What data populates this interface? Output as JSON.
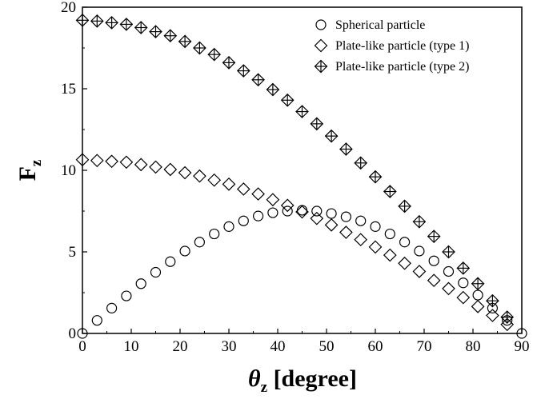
{
  "chart_data": {
    "type": "scatter",
    "x_axis": {
      "label_symbol": "θ",
      "label_subscript": "z",
      "label_unit": " [degree]",
      "range": [
        0,
        90
      ],
      "ticks": [
        0,
        10,
        20,
        30,
        40,
        50,
        60,
        70,
        80,
        90
      ]
    },
    "y_axis": {
      "label_symbol": "F",
      "label_subscript": "z",
      "range": [
        0,
        20
      ],
      "ticks": [
        0,
        5,
        10,
        15,
        20
      ]
    },
    "grid": false,
    "legend_position": "top-right",
    "series": [
      {
        "name": "Spherical particle",
        "marker": "circle",
        "x": [
          0,
          3,
          6,
          9,
          12,
          15,
          18,
          21,
          24,
          27,
          30,
          33,
          36,
          39,
          42,
          45,
          48,
          51,
          54,
          57,
          60,
          63,
          66,
          69,
          72,
          75,
          78,
          81,
          84,
          87,
          90
        ],
        "y": [
          0.0,
          0.8,
          1.55,
          2.3,
          3.05,
          3.75,
          4.4,
          5.05,
          5.6,
          6.1,
          6.55,
          6.9,
          7.2,
          7.4,
          7.5,
          7.55,
          7.5,
          7.35,
          7.15,
          6.9,
          6.55,
          6.1,
          5.6,
          5.05,
          4.45,
          3.8,
          3.1,
          2.35,
          1.55,
          0.8,
          0.0
        ]
      },
      {
        "name": "Plate-like particle (type 1)",
        "marker": "diamond",
        "x": [
          0,
          3,
          6,
          9,
          12,
          15,
          18,
          21,
          24,
          27,
          30,
          33,
          36,
          39,
          42,
          45,
          48,
          51,
          54,
          57,
          60,
          63,
          66,
          69,
          72,
          75,
          78,
          81,
          84,
          87
        ],
        "y": [
          10.65,
          10.6,
          10.55,
          10.5,
          10.35,
          10.2,
          10.05,
          9.85,
          9.65,
          9.4,
          9.15,
          8.85,
          8.55,
          8.2,
          7.85,
          7.45,
          7.05,
          6.65,
          6.2,
          5.75,
          5.3,
          4.8,
          4.3,
          3.8,
          3.25,
          2.75,
          2.2,
          1.65,
          1.1,
          0.55
        ]
      },
      {
        "name": "Plate-like particle (type 2)",
        "marker": "crossed-diamond",
        "x": [
          0,
          3,
          6,
          9,
          12,
          15,
          18,
          21,
          24,
          27,
          30,
          33,
          36,
          39,
          42,
          45,
          48,
          51,
          54,
          57,
          60,
          63,
          66,
          69,
          72,
          75,
          78,
          81,
          84,
          87
        ],
        "y": [
          19.2,
          19.15,
          19.05,
          18.95,
          18.75,
          18.5,
          18.25,
          17.9,
          17.5,
          17.1,
          16.6,
          16.1,
          15.55,
          14.95,
          14.3,
          13.6,
          12.85,
          12.1,
          11.3,
          10.45,
          9.6,
          8.7,
          7.8,
          6.85,
          5.95,
          5.0,
          4.0,
          3.05,
          2.0,
          1.0
        ]
      }
    ]
  }
}
